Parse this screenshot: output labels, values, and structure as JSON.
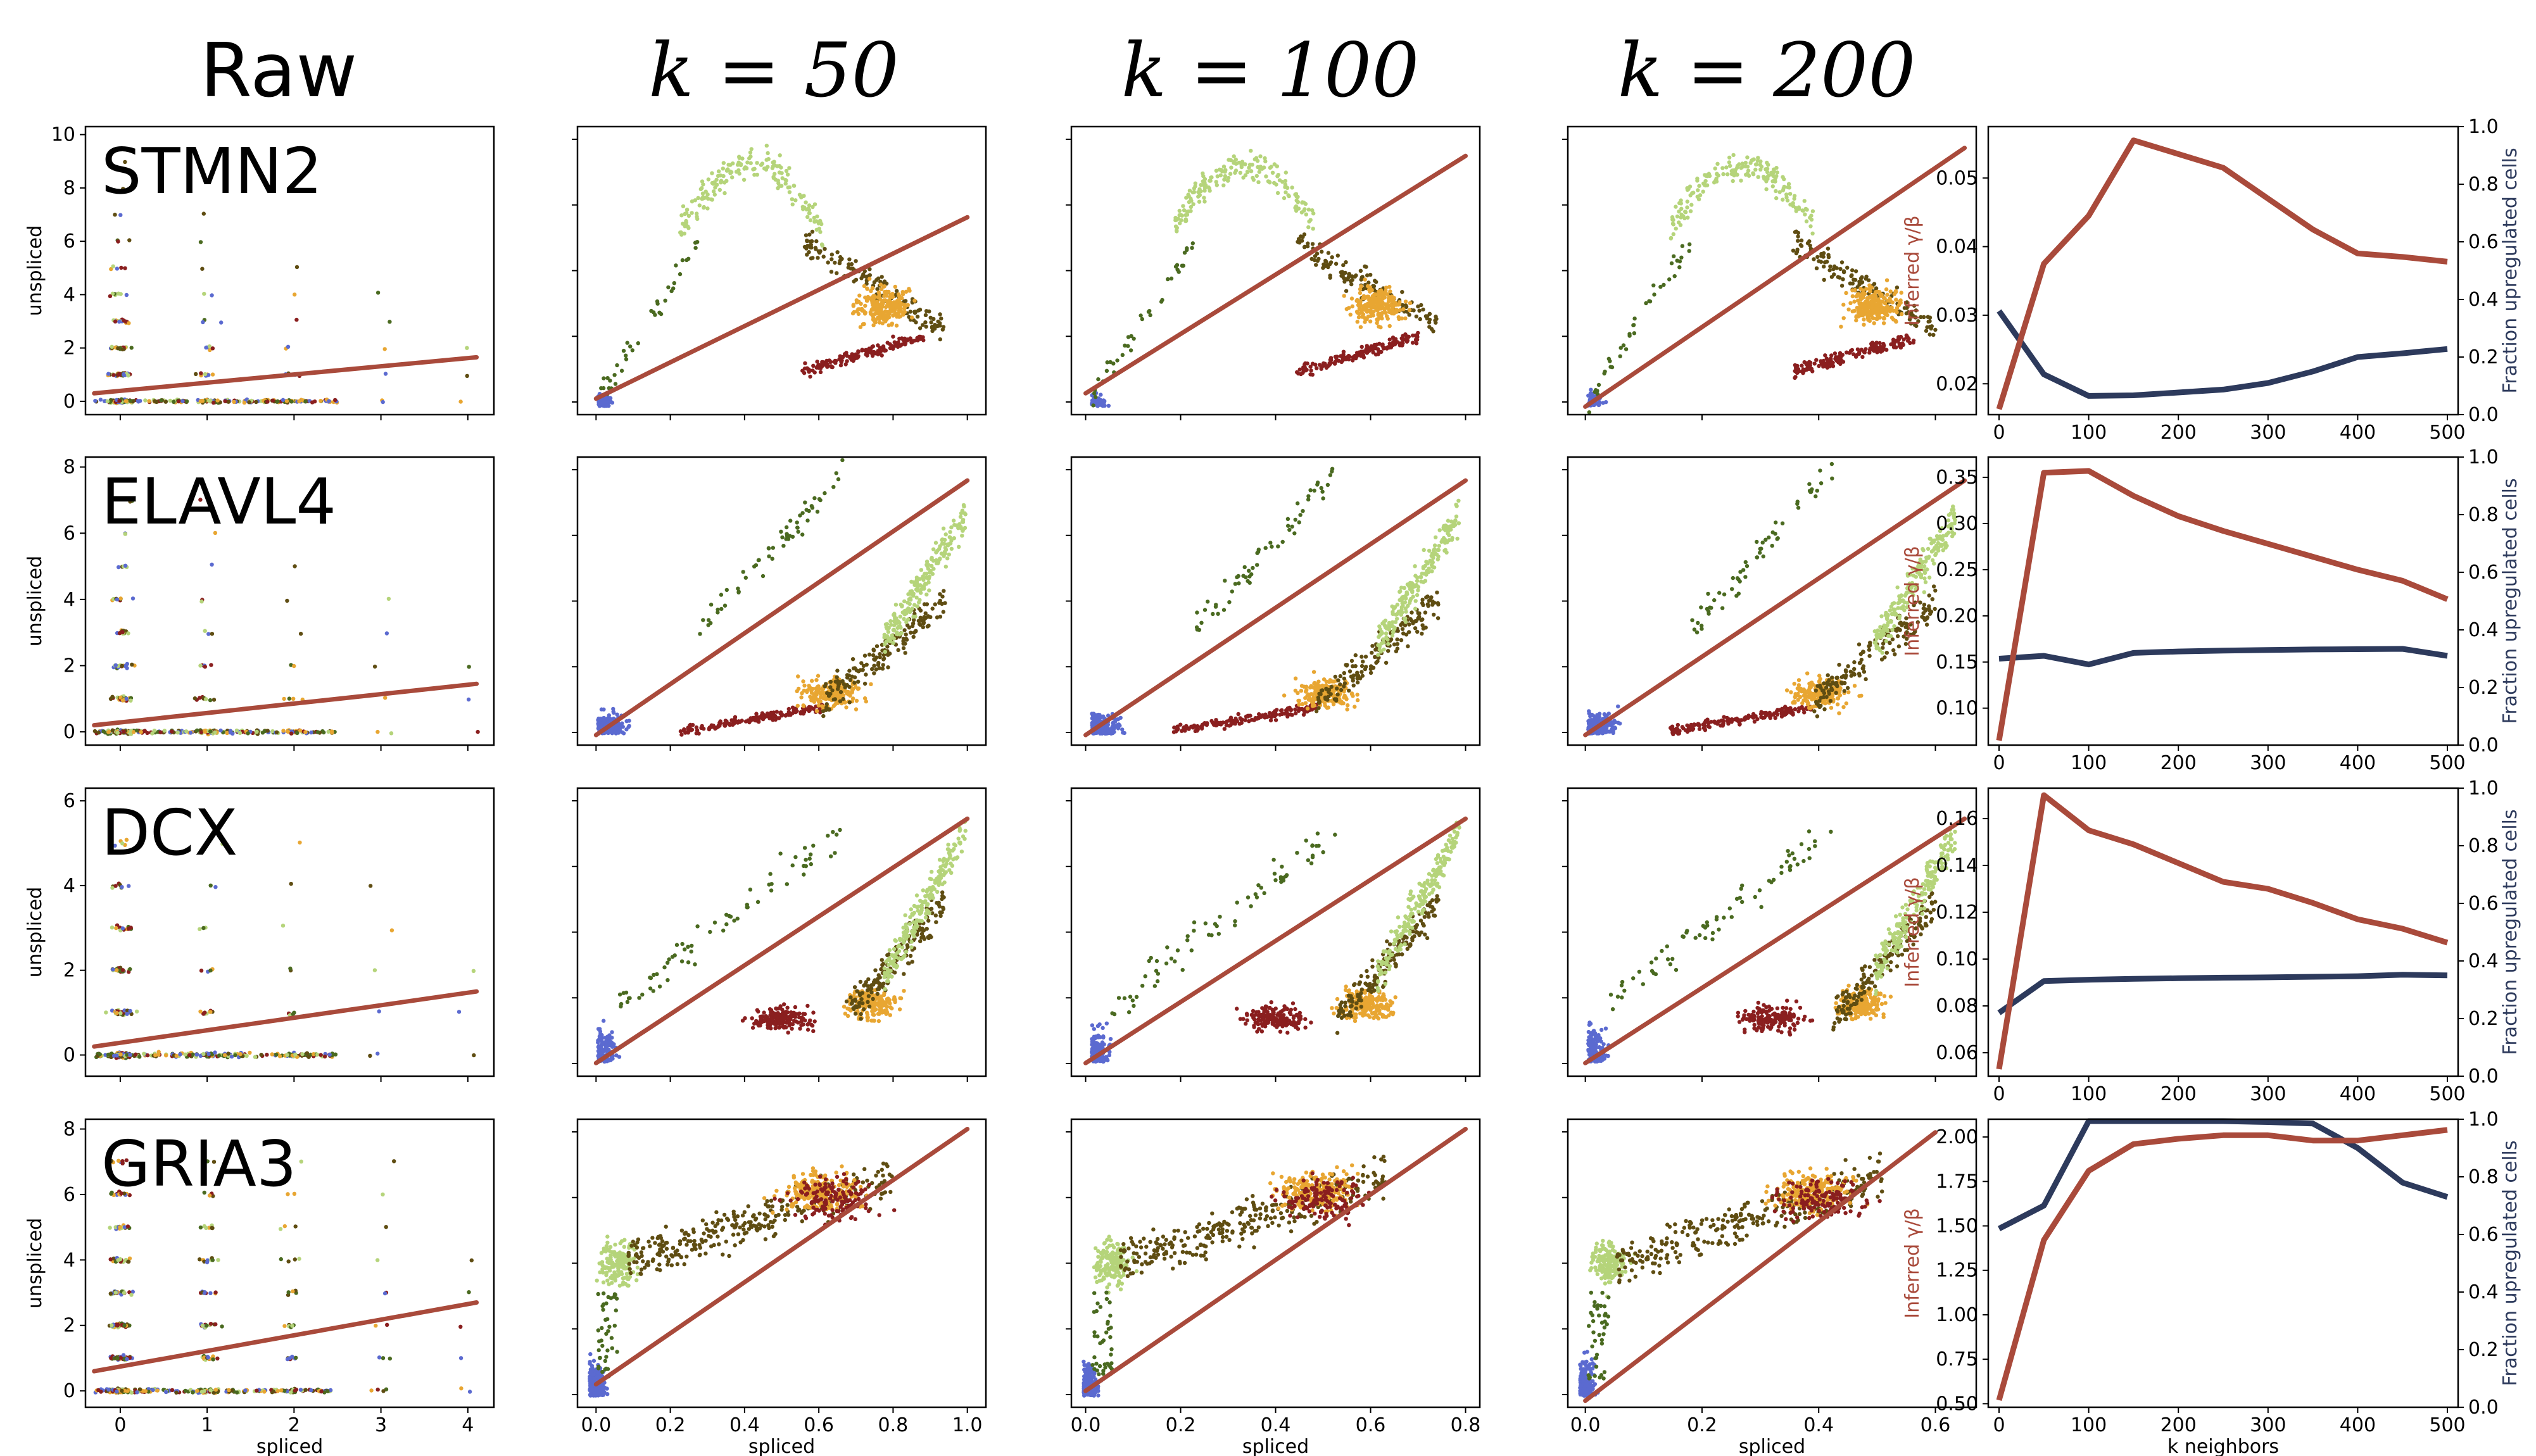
{
  "column_titles": [
    "Raw",
    "k = 50",
    "k = 100",
    "k = 200"
  ],
  "colors": {
    "fit_line": "#a94a3b",
    "fraction_line": "#2d3a5c",
    "clusters": [
      "#5b6ad0",
      "#8a1f1f",
      "#5f4d12",
      "#e8a632",
      "#b5d47a",
      "#4a6a20"
    ]
  },
  "chart_data": [
    {
      "gene": "STMN2",
      "panels": [
        {
          "type": "scatter",
          "k": "raw",
          "ylabel": "unspliced",
          "xlim": [
            -0.4,
            4.3
          ],
          "ylim": [
            -0.5,
            10.3
          ],
          "xticks": [
            0,
            1,
            2,
            3,
            4
          ],
          "yticks": [
            0,
            2,
            4,
            6,
            8,
            10
          ],
          "fit": {
            "x": [
              -0.3,
              4.1
            ],
            "y": [
              0.3,
              1.65
            ]
          }
        },
        {
          "type": "scatter",
          "k": 50,
          "xlim": [
            -0.05,
            1.05
          ],
          "ylim": [
            -0.3,
            10.5
          ],
          "xticks": [
            0,
            0.2,
            0.4,
            0.6,
            0.8,
            1.0
          ],
          "yticks": [],
          "fit": {
            "x": [
              0,
              1.0
            ],
            "y": [
              0.3,
              7.1
            ]
          }
        },
        {
          "type": "scatter",
          "k": 100,
          "xlim": [
            -0.03,
            0.83
          ],
          "ylim": [
            -0.3,
            10.5
          ],
          "xticks": [
            0,
            0.2,
            0.4,
            0.6,
            0.8
          ],
          "yticks": [],
          "fit": {
            "x": [
              0,
              0.8
            ],
            "y": [
              0.5,
              9.4
            ]
          }
        },
        {
          "type": "scatter",
          "k": 200,
          "xlim": [
            -0.03,
            0.67
          ],
          "ylim": [
            -0.3,
            10.5
          ],
          "xticks": [
            0,
            0.2,
            0.4,
            0.6
          ],
          "yticks": [],
          "fit": {
            "x": [
              0,
              0.65
            ],
            "y": [
              0,
              9.7
            ]
          }
        },
        {
          "type": "line",
          "x": [
            0,
            50,
            100,
            150,
            200,
            250,
            300,
            350,
            400,
            450,
            500
          ],
          "gamma": [
            0.0163,
            0.0375,
            0.0445,
            0.0555,
            0.0535,
            0.0515,
            0.047,
            0.0425,
            0.039,
            0.0385,
            0.0378
          ],
          "fraction": [
            0.36,
            0.14,
            0.065,
            0.067,
            0.077,
            0.087,
            0.11,
            0.15,
            0.2,
            0.213,
            0.228
          ],
          "y1lim": [
            0.0155,
            0.0575
          ],
          "y1ticks": [
            0.02,
            0.03,
            0.04,
            0.05
          ],
          "y2lim": [
            0,
            1
          ],
          "y2ticks": [
            0.0,
            0.2,
            0.4,
            0.6,
            0.8,
            1.0
          ],
          "ylabel_left": "Inferred γ/β",
          "ylabel_right": "Fraction upregulated cells"
        }
      ]
    },
    {
      "gene": "ELAVL4",
      "panels": [
        {
          "type": "scatter",
          "k": "raw",
          "ylabel": "unspliced",
          "xlim": [
            -0.4,
            4.3
          ],
          "ylim": [
            -0.4,
            8.3
          ],
          "xticks": [
            0,
            1,
            2,
            3,
            4
          ],
          "yticks": [
            0,
            2,
            4,
            6,
            8
          ],
          "fit": {
            "x": [
              -0.3,
              4.1
            ],
            "y": [
              0.2,
              1.45
            ]
          }
        },
        {
          "type": "scatter",
          "k": 50,
          "xlim": [
            -0.05,
            1.05
          ],
          "ylim": [
            -0.3,
            8.3
          ],
          "xticks": [
            0,
            0.2,
            0.4,
            0.6,
            0.8,
            1.0
          ],
          "yticks": [],
          "fit": {
            "x": [
              0,
              1.0
            ],
            "y": [
              0,
              7.6
            ]
          }
        },
        {
          "type": "scatter",
          "k": 100,
          "xlim": [
            -0.03,
            0.83
          ],
          "ylim": [
            -0.3,
            8.3
          ],
          "xticks": [
            0,
            0.2,
            0.4,
            0.6,
            0.8
          ],
          "yticks": [],
          "fit": {
            "x": [
              0,
              0.8
            ],
            "y": [
              0,
              7.6
            ]
          }
        },
        {
          "type": "scatter",
          "k": 200,
          "xlim": [
            -0.03,
            0.67
          ],
          "ylim": [
            -0.3,
            8.3
          ],
          "xticks": [
            0,
            0.2,
            0.4,
            0.6
          ],
          "yticks": [],
          "fit": {
            "x": [
              0,
              0.65
            ],
            "y": [
              0,
              7.6
            ]
          }
        },
        {
          "type": "line",
          "x": [
            0,
            50,
            100,
            150,
            200,
            250,
            300,
            350,
            400,
            450,
            500
          ],
          "gamma": [
            0.065,
            0.355,
            0.357,
            0.33,
            0.308,
            0.292,
            0.278,
            0.264,
            0.25,
            0.238,
            0.218
          ],
          "fraction": [
            0.3,
            0.31,
            0.28,
            0.32,
            0.325,
            0.328,
            0.33,
            0.332,
            0.333,
            0.334,
            0.31
          ],
          "y1lim": [
            0.06,
            0.372
          ],
          "y1ticks": [
            0.1,
            0.15,
            0.2,
            0.25,
            0.3,
            0.35
          ],
          "y2lim": [
            0,
            1
          ],
          "y2ticks": [
            0.0,
            0.2,
            0.4,
            0.6,
            0.8,
            1.0
          ],
          "ylabel_left": "Inferred γ/β",
          "ylabel_right": "Fraction upregulated cells"
        }
      ]
    },
    {
      "gene": "DCX",
      "panels": [
        {
          "type": "scatter",
          "k": "raw",
          "ylabel": "unspliced",
          "xlim": [
            -0.4,
            4.3
          ],
          "ylim": [
            -0.5,
            6.3
          ],
          "xticks": [
            0,
            1,
            2,
            3,
            4
          ],
          "yticks": [
            0,
            2,
            4,
            6
          ],
          "fit": {
            "x": [
              -0.3,
              4.1
            ],
            "y": [
              0.2,
              1.5
            ]
          }
        },
        {
          "type": "scatter",
          "k": 50,
          "xlim": [
            -0.05,
            1.05
          ],
          "ylim": [
            -0.3,
            6.3
          ],
          "xticks": [
            0,
            0.2,
            0.4,
            0.6,
            0.8,
            1.0
          ],
          "yticks": [],
          "fit": {
            "x": [
              0,
              1.0
            ],
            "y": [
              0,
              5.6
            ]
          }
        },
        {
          "type": "scatter",
          "k": 100,
          "xlim": [
            -0.03,
            0.83
          ],
          "ylim": [
            -0.3,
            6.3
          ],
          "xticks": [
            0,
            0.2,
            0.4,
            0.6,
            0.8
          ],
          "yticks": [],
          "fit": {
            "x": [
              0,
              0.8
            ],
            "y": [
              0,
              5.6
            ]
          }
        },
        {
          "type": "scatter",
          "k": 200,
          "xlim": [
            -0.03,
            0.67
          ],
          "ylim": [
            -0.3,
            6.3
          ],
          "xticks": [
            0,
            0.2,
            0.4,
            0.6
          ],
          "yticks": [],
          "fit": {
            "x": [
              0,
              0.65
            ],
            "y": [
              0,
              5.6
            ]
          }
        },
        {
          "type": "line",
          "x": [
            0,
            50,
            100,
            150,
            200,
            250,
            300,
            350,
            400,
            450,
            500
          ],
          "gamma": [
            0.053,
            0.17,
            0.155,
            0.149,
            0.141,
            0.133,
            0.13,
            0.124,
            0.117,
            0.113,
            0.107
          ],
          "fraction": [
            0.22,
            0.33,
            0.335,
            0.338,
            0.34,
            0.342,
            0.343,
            0.345,
            0.347,
            0.352,
            0.35
          ],
          "y1lim": [
            0.05,
            0.173
          ],
          "y1ticks": [
            0.06,
            0.08,
            0.1,
            0.12,
            0.14,
            0.16
          ],
          "y2lim": [
            0,
            1
          ],
          "y2ticks": [
            0.0,
            0.2,
            0.4,
            0.6,
            0.8,
            1.0
          ],
          "ylabel_left": "Inferred γ/β",
          "ylabel_right": "Fraction upregulated cells"
        }
      ]
    },
    {
      "gene": "GRIA3",
      "panels": [
        {
          "type": "scatter",
          "k": "raw",
          "ylabel": "unspliced",
          "xlabel": "spliced",
          "xlim": [
            -0.4,
            4.3
          ],
          "ylim": [
            -0.5,
            8.3
          ],
          "xticks": [
            0,
            1,
            2,
            3,
            4
          ],
          "yticks": [
            0,
            2,
            4,
            6,
            8
          ],
          "fit": {
            "x": [
              -0.3,
              4.1
            ],
            "y": [
              0.6,
              2.7
            ]
          }
        },
        {
          "type": "scatter",
          "k": 50,
          "xlabel": "spliced",
          "xlim": [
            -0.05,
            1.05
          ],
          "ylim": [
            -0.5,
            8.3
          ],
          "xticks": [
            0,
            0.2,
            0.4,
            0.6,
            0.8,
            1.0
          ],
          "yticks": [],
          "fit": {
            "x": [
              0,
              1.0
            ],
            "y": [
              0.2,
              8.0
            ]
          }
        },
        {
          "type": "scatter",
          "k": 100,
          "xlabel": "spliced",
          "xlim": [
            -0.03,
            0.83
          ],
          "ylim": [
            -0.5,
            8.3
          ],
          "xticks": [
            0,
            0.2,
            0.4,
            0.6,
            0.8
          ],
          "yticks": [],
          "fit": {
            "x": [
              0,
              0.8
            ],
            "y": [
              0,
              8.0
            ]
          }
        },
        {
          "type": "scatter",
          "k": 200,
          "xlabel": "spliced",
          "xlim": [
            -0.03,
            0.67
          ],
          "ylim": [
            -0.5,
            8.3
          ],
          "xticks": [
            0,
            0.2,
            0.4,
            0.6
          ],
          "yticks": [],
          "fit": {
            "x": [
              0,
              0.6
            ],
            "y": [
              -0.3,
              7.9
            ]
          }
        },
        {
          "type": "line",
          "xlabel": "k neighbors",
          "x": [
            0,
            50,
            100,
            150,
            200,
            250,
            300,
            350,
            400,
            450,
            500
          ],
          "gamma": [
            0.52,
            1.42,
            1.81,
            1.96,
            1.99,
            2.01,
            2.01,
            1.98,
            1.98,
            2.01,
            2.04
          ],
          "fraction": [
            0.62,
            0.7,
            1.0,
            1.0,
            1.0,
            0.995,
            0.99,
            0.985,
            0.9,
            0.78,
            0.73
          ],
          "y1lim": [
            0.48,
            2.1
          ],
          "y1ticks": [
            0.5,
            0.75,
            1.0,
            1.25,
            1.5,
            1.75,
            2.0
          ],
          "y2lim": [
            0,
            1
          ],
          "y2ticks": [
            0.0,
            0.2,
            0.4,
            0.6,
            0.8,
            1.0
          ],
          "ylabel_left": "Inferred γ/β",
          "ylabel_right": "Fraction upregulated cells"
        }
      ]
    }
  ]
}
